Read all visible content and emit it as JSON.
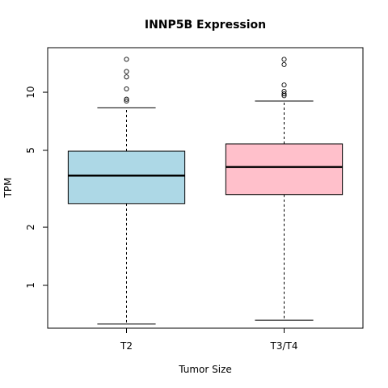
{
  "chart_data": {
    "type": "boxplot",
    "title": "INNP5B Expression",
    "xlabel": "Tumor Size",
    "ylabel": "TPM",
    "y_scale": "log",
    "ylim": [
      0.6,
      17
    ],
    "y_ticks": [
      1,
      2,
      5,
      10
    ],
    "categories": [
      "T2",
      "T3/T4"
    ],
    "boxes": [
      {
        "name": "T2",
        "color": "#add8e6",
        "whisker_low": 0.63,
        "q1": 2.65,
        "median": 3.7,
        "q3": 4.95,
        "whisker_high": 8.3,
        "outliers": [
          9.0,
          9.2,
          10.4,
          12.0,
          12.8,
          14.8
        ]
      },
      {
        "name": "T3/T4",
        "color": "#ffc0cb",
        "whisker_low": 0.66,
        "q1": 2.95,
        "median": 4.1,
        "q3": 5.4,
        "whisker_high": 9.0,
        "outliers": [
          9.6,
          9.8,
          10.1,
          10.9,
          13.9,
          14.8
        ]
      }
    ]
  }
}
